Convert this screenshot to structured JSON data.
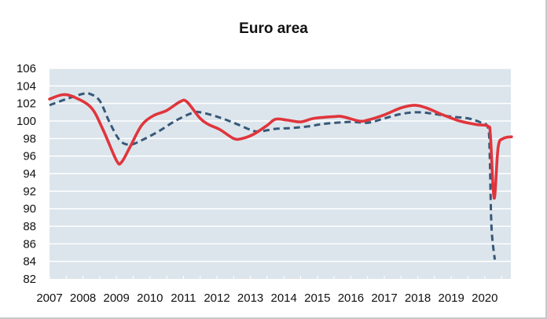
{
  "chart_data": {
    "type": "line",
    "title": "Euro area",
    "xlabel": "",
    "ylabel": "",
    "xlim": [
      2007,
      2020.8
    ],
    "ylim": [
      82,
      106
    ],
    "x_ticks": [
      "2007",
      "2008",
      "2009",
      "2010",
      "2011",
      "2012",
      "2013",
      "2014",
      "2015",
      "2016",
      "2017",
      "2018",
      "2019",
      "2020"
    ],
    "y_ticks": [
      "82",
      "84",
      "86",
      "88",
      "90",
      "92",
      "94",
      "96",
      "98",
      "100",
      "102",
      "104",
      "106"
    ],
    "grid": true,
    "legend": "none",
    "background_color": "#dce5ec",
    "series": [
      {
        "style": "solid",
        "color": "#e0353c",
        "x": [
          2007.0,
          2007.4,
          2007.75,
          2008.25,
          2008.6,
          2009.0,
          2009.15,
          2009.4,
          2009.75,
          2010.1,
          2010.5,
          2010.9,
          2011.1,
          2011.5,
          2011.75,
          2012.1,
          2012.5,
          2012.75,
          2013.1,
          2013.5,
          2013.75,
          2014.1,
          2014.5,
          2014.9,
          2015.5,
          2015.75,
          2016.25,
          2016.5,
          2017.0,
          2017.5,
          2017.9,
          2018.25,
          2018.75,
          2019.25,
          2019.75,
          2020.1,
          2020.17,
          2020.28,
          2020.4,
          2020.55,
          2020.8
        ],
        "y": [
          102.5,
          103.0,
          102.7,
          101.5,
          99.0,
          95.5,
          95.3,
          97.0,
          99.5,
          100.6,
          101.2,
          102.2,
          102.2,
          100.3,
          99.6,
          99.0,
          98.0,
          98.0,
          98.5,
          99.5,
          100.2,
          100.1,
          99.9,
          100.3,
          100.5,
          100.5,
          100.0,
          100.1,
          100.7,
          101.5,
          101.8,
          101.5,
          100.7,
          100.0,
          99.6,
          99.4,
          98.3,
          91.2,
          97.0,
          98.0,
          98.2
        ]
      },
      {
        "style": "dashed",
        "color": "#375878",
        "x": [
          2007.0,
          2007.5,
          2008.0,
          2008.2,
          2008.5,
          2008.8,
          2009.1,
          2009.4,
          2009.75,
          2010.25,
          2010.75,
          2011.25,
          2011.5,
          2012.0,
          2012.5,
          2013.0,
          2013.25,
          2013.75,
          2014.25,
          2014.75,
          2015.25,
          2016.0,
          2016.5,
          2017.0,
          2017.5,
          2018.0,
          2018.5,
          2019.0,
          2019.5,
          2019.9,
          2020.1,
          2020.15,
          2020.2,
          2020.3
        ],
        "y": [
          101.8,
          102.5,
          103.1,
          103.1,
          102.3,
          99.8,
          97.8,
          97.3,
          97.8,
          98.8,
          100.0,
          100.9,
          101.0,
          100.5,
          99.8,
          99.0,
          98.8,
          99.1,
          99.2,
          99.4,
          99.7,
          99.9,
          99.8,
          100.3,
          100.8,
          101.0,
          100.8,
          100.5,
          100.3,
          99.8,
          99.2,
          96.0,
          88.0,
          84.2
        ]
      }
    ]
  }
}
